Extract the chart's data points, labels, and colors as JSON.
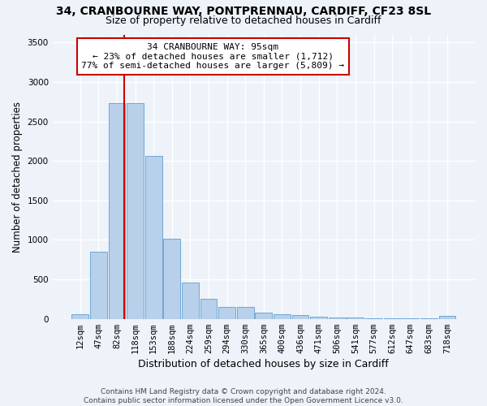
{
  "title_line1": "34, CRANBOURNE WAY, PONTPRENNAU, CARDIFF, CF23 8SL",
  "title_line2": "Size of property relative to detached houses in Cardiff",
  "xlabel": "Distribution of detached houses by size in Cardiff",
  "ylabel": "Number of detached properties",
  "categories": [
    "12sqm",
    "47sqm",
    "82sqm",
    "118sqm",
    "153sqm",
    "188sqm",
    "224sqm",
    "259sqm",
    "294sqm",
    "330sqm",
    "365sqm",
    "400sqm",
    "436sqm",
    "471sqm",
    "506sqm",
    "541sqm",
    "577sqm",
    "612sqm",
    "647sqm",
    "683sqm",
    "718sqm"
  ],
  "values": [
    55,
    850,
    2730,
    2730,
    2060,
    1010,
    460,
    250,
    155,
    155,
    75,
    55,
    45,
    30,
    20,
    15,
    8,
    6,
    4,
    3,
    35
  ],
  "bar_color": "#b8d0ea",
  "bar_edge_color": "#6fa8d4",
  "vline_x": 2.42,
  "vline_color": "#cc0000",
  "annotation_text": "34 CRANBOURNE WAY: 95sqm\n← 23% of detached houses are smaller (1,712)\n77% of semi-detached houses are larger (5,809) →",
  "annotation_box_color": "white",
  "annotation_box_edge": "#cc0000",
  "ylim": [
    0,
    3600
  ],
  "yticks": [
    0,
    500,
    1000,
    1500,
    2000,
    2500,
    3000,
    3500
  ],
  "footer_line1": "Contains HM Land Registry data © Crown copyright and database right 2024.",
  "footer_line2": "Contains public sector information licensed under the Open Government Licence v3.0.",
  "bg_color": "#eef2f9",
  "grid_color": "#ffffff",
  "title_fontsize": 10,
  "subtitle_fontsize": 9,
  "ylabel_fontsize": 8.5,
  "xlabel_fontsize": 9,
  "tick_fontsize": 7.5,
  "annot_fontsize": 8
}
